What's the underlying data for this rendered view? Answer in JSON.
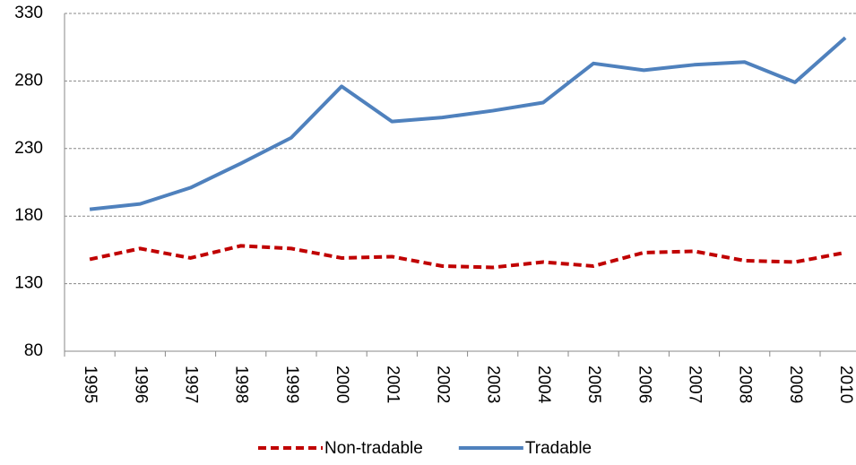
{
  "chart_data": {
    "type": "line",
    "categories": [
      "1995",
      "1996",
      "1997",
      "1998",
      "1999",
      "2000",
      "2001",
      "2002",
      "2003",
      "2004",
      "2005",
      "2006",
      "2007",
      "2008",
      "2009",
      "2010"
    ],
    "series": [
      {
        "name": "Non-tradable",
        "color": "#c00000",
        "dash": true,
        "values": [
          148,
          156,
          149,
          158,
          156,
          149,
          150,
          143,
          142,
          146,
          143,
          153,
          154,
          147,
          146,
          153
        ]
      },
      {
        "name": "Tradable",
        "color": "#4f81bd",
        "dash": false,
        "values": [
          185,
          189,
          201,
          219,
          238,
          276,
          250,
          253,
          258,
          264,
          293,
          288,
          292,
          294,
          279,
          312
        ]
      }
    ],
    "ylim": [
      80,
      330
    ],
    "yticks": [
      80,
      130,
      180,
      230,
      280,
      330
    ],
    "grid": true,
    "legend": "bottom"
  }
}
